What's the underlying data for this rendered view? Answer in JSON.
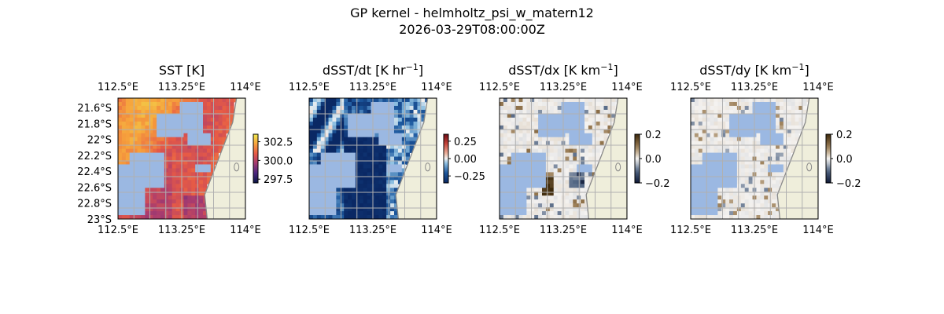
{
  "figure": {
    "suptitle_line1": "GP kernel - helmholtz_psi_w_matern12",
    "suptitle_line2": "2026-03-29T08:00:00Z"
  },
  "colors": {
    "land": "#efeedb",
    "coast": "#888888",
    "no_data": "#9bb8e2",
    "grid": "#b0b0b0"
  },
  "chart_data": [
    {
      "type": "heatmap",
      "title": "SST [K]",
      "variable": "SST",
      "unit": "K",
      "colormap": "thermal",
      "xlim": [
        112.5,
        114.0
      ],
      "ylim": [
        -23.0,
        -21.5
      ],
      "x_ticks": [
        "112.5°E",
        "113.25°E",
        "114°E"
      ],
      "y_ticks": [
        "21.6°S",
        "21.8°S",
        "22°S",
        "22.2°S",
        "22.4°S",
        "22.6°S",
        "22.8°S",
        "23°S"
      ],
      "colorbar": {
        "vmin": 297.0,
        "vmax": 303.5,
        "ticks": [
          "302.5",
          "300.0",
          "297.5"
        ],
        "tick_values": [
          302.5,
          300.0,
          297.5
        ]
      },
      "grid": true
    },
    {
      "type": "heatmap",
      "title": "dSST/dt [K hr",
      "title_sup": "−1",
      "title_close": "]",
      "variable": "dSST/dt",
      "unit": "K hr⁻¹",
      "colormap": "diverging-blue-red",
      "xlim": [
        112.5,
        114.0
      ],
      "ylim": [
        -23.0,
        -21.5
      ],
      "x_ticks": [
        "112.5°E",
        "113.25°E",
        "114°E"
      ],
      "colorbar": {
        "vmin": -0.35,
        "vmax": 0.35,
        "ticks": [
          "0.25",
          "0.00",
          "−0.25"
        ],
        "tick_values": [
          0.25,
          0.0,
          -0.25
        ]
      },
      "grid": true
    },
    {
      "type": "heatmap",
      "title": "dSST/dx [K km",
      "title_sup": "−1",
      "title_close": "]",
      "variable": "dSST/dx",
      "unit": "K km⁻¹",
      "colormap": "diverging-slate-brown",
      "xlim": [
        112.5,
        114.0
      ],
      "ylim": [
        -23.0,
        -21.5
      ],
      "x_ticks": [
        "112.5°E",
        "113.25°E",
        "114°E"
      ],
      "colorbar": {
        "vmin": -0.2,
        "vmax": 0.2,
        "ticks": [
          "0.2",
          "0.0",
          "−0.2"
        ],
        "tick_values": [
          0.2,
          0.0,
          -0.2
        ]
      },
      "grid": true
    },
    {
      "type": "heatmap",
      "title": "dSST/dy [K km",
      "title_sup": "−1",
      "title_close": "]",
      "variable": "dSST/dy",
      "unit": "K km⁻¹",
      "colormap": "diverging-slate-brown",
      "xlim": [
        112.5,
        114.0
      ],
      "ylim": [
        -23.0,
        -21.5
      ],
      "x_ticks": [
        "112.5°E",
        "113.25°E",
        "114°E"
      ],
      "colorbar": {
        "vmin": -0.2,
        "vmax": 0.2,
        "ticks": [
          "0.2",
          "0.0",
          "−0.2"
        ],
        "tick_values": [
          0.2,
          0.0,
          -0.2
        ]
      },
      "grid": true
    }
  ]
}
